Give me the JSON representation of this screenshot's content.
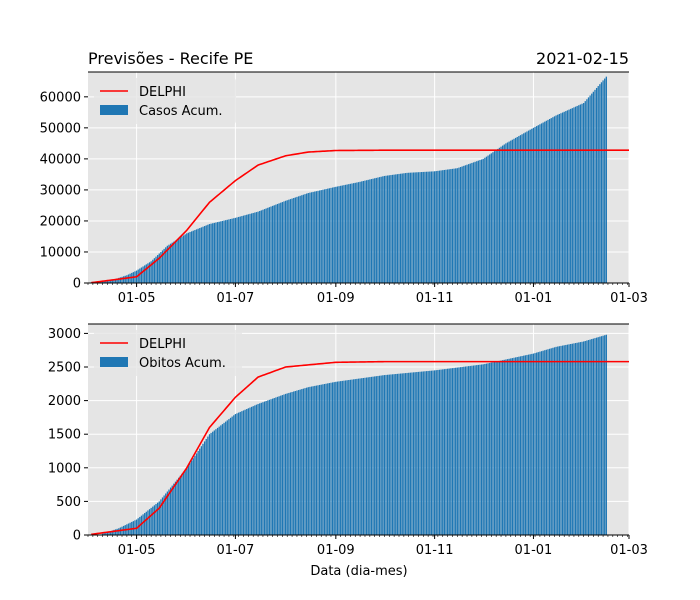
{
  "figure": {
    "title_left": "Previsões - Recife PE",
    "title_right": "2021-02-15",
    "xlabel": "Data (dia-mes)",
    "colors": {
      "bars": "#1f77b4",
      "model": "#ff0000",
      "plot_bg": "#e5e5e5",
      "grid": "#ffffff"
    }
  },
  "chart_data": [
    {
      "type": "bar",
      "x_type": "date",
      "xlim": [
        "2020-04-01",
        "2021-03-01"
      ],
      "x_ticks": [
        {
          "date": "2020-05-01",
          "label": "01-05"
        },
        {
          "date": "2020-07-01",
          "label": "01-07"
        },
        {
          "date": "2020-09-01",
          "label": "01-09"
        },
        {
          "date": "2020-11-01",
          "label": "01-11"
        },
        {
          "date": "2021-01-01",
          "label": "01-01"
        },
        {
          "date": "2021-03-01",
          "label": "01-03"
        }
      ],
      "ylim": [
        0,
        68000
      ],
      "y_ticks": [
        0,
        10000,
        20000,
        30000,
        40000,
        50000,
        60000
      ],
      "grid": true,
      "legend_position": "top-left",
      "bar_series": {
        "name": "Casos Acum.",
        "start": "2020-04-03",
        "end": "2021-02-15",
        "points": [
          [
            "2020-04-03",
            200
          ],
          [
            "2020-04-15",
            800
          ],
          [
            "2020-04-25",
            2500
          ],
          [
            "2020-05-01",
            4000
          ],
          [
            "2020-05-10",
            7000
          ],
          [
            "2020-05-20",
            12000
          ],
          [
            "2020-06-01",
            16000
          ],
          [
            "2020-06-15",
            19000
          ],
          [
            "2020-07-01",
            21000
          ],
          [
            "2020-07-15",
            23000
          ],
          [
            "2020-08-01",
            26500
          ],
          [
            "2020-08-15",
            29000
          ],
          [
            "2020-09-01",
            31000
          ],
          [
            "2020-09-15",
            32500
          ],
          [
            "2020-10-01",
            34500
          ],
          [
            "2020-10-15",
            35500
          ],
          [
            "2020-11-01",
            36000
          ],
          [
            "2020-11-15",
            37000
          ],
          [
            "2020-12-01",
            40000
          ],
          [
            "2020-12-15",
            45000
          ],
          [
            "2021-01-01",
            50000
          ],
          [
            "2021-01-15",
            54000
          ],
          [
            "2021-02-01",
            58000
          ],
          [
            "2021-02-15",
            66500
          ]
        ]
      },
      "line_series": {
        "name": "DELPHI",
        "start": "2020-04-03",
        "end": "2021-03-01",
        "points": [
          [
            "2020-04-03",
            100
          ],
          [
            "2020-05-01",
            2000
          ],
          [
            "2020-05-15",
            8000
          ],
          [
            "2020-06-01",
            17000
          ],
          [
            "2020-06-15",
            26000
          ],
          [
            "2020-07-01",
            33000
          ],
          [
            "2020-07-15",
            38000
          ],
          [
            "2020-08-01",
            41000
          ],
          [
            "2020-08-15",
            42200
          ],
          [
            "2020-09-01",
            42700
          ],
          [
            "2020-10-01",
            42800
          ],
          [
            "2021-03-01",
            42800
          ]
        ]
      }
    },
    {
      "type": "bar",
      "x_type": "date",
      "xlim": [
        "2020-04-01",
        "2021-03-01"
      ],
      "x_ticks": [
        {
          "date": "2020-05-01",
          "label": "01-05"
        },
        {
          "date": "2020-07-01",
          "label": "01-07"
        },
        {
          "date": "2020-09-01",
          "label": "01-09"
        },
        {
          "date": "2020-11-01",
          "label": "01-11"
        },
        {
          "date": "2021-01-01",
          "label": "01-01"
        },
        {
          "date": "2021-03-01",
          "label": "01-03"
        }
      ],
      "ylim": [
        0,
        3140
      ],
      "y_ticks": [
        0,
        500,
        1000,
        1500,
        2000,
        2500,
        3000
      ],
      "grid": true,
      "legend_position": "top-left",
      "bar_series": {
        "name": "Obitos Acum.",
        "start": "2020-04-10",
        "end": "2021-02-15",
        "points": [
          [
            "2020-04-10",
            20
          ],
          [
            "2020-04-20",
            100
          ],
          [
            "2020-05-01",
            230
          ],
          [
            "2020-05-15",
            500
          ],
          [
            "2020-06-01",
            1000
          ],
          [
            "2020-06-15",
            1500
          ],
          [
            "2020-07-01",
            1800
          ],
          [
            "2020-07-15",
            1950
          ],
          [
            "2020-08-01",
            2100
          ],
          [
            "2020-08-15",
            2200
          ],
          [
            "2020-09-01",
            2280
          ],
          [
            "2020-10-01",
            2380
          ],
          [
            "2020-11-01",
            2450
          ],
          [
            "2020-12-01",
            2540
          ],
          [
            "2021-01-01",
            2700
          ],
          [
            "2021-01-15",
            2800
          ],
          [
            "2021-02-01",
            2880
          ],
          [
            "2021-02-15",
            2980
          ]
        ]
      },
      "line_series": {
        "name": "DELPHI",
        "start": "2020-04-03",
        "end": "2021-03-01",
        "points": [
          [
            "2020-04-03",
            10
          ],
          [
            "2020-05-01",
            100
          ],
          [
            "2020-05-15",
            400
          ],
          [
            "2020-06-01",
            1000
          ],
          [
            "2020-06-15",
            1600
          ],
          [
            "2020-07-01",
            2050
          ],
          [
            "2020-07-15",
            2350
          ],
          [
            "2020-08-01",
            2500
          ],
          [
            "2020-09-01",
            2570
          ],
          [
            "2020-10-01",
            2580
          ],
          [
            "2021-03-01",
            2580
          ]
        ]
      }
    }
  ]
}
